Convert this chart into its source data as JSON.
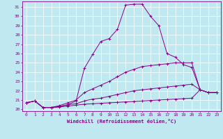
{
  "xlabel": "Windchill (Refroidissement éolien,°C)",
  "background_color": "#c0e8f0",
  "line_color": "#880088",
  "grid_color": "#ffffff",
  "ylim": [
    19.8,
    31.6
  ],
  "xlim": [
    -0.5,
    23.5
  ],
  "yticks": [
    20,
    21,
    22,
    23,
    24,
    25,
    26,
    27,
    28,
    29,
    30,
    31
  ],
  "xticks": [
    0,
    1,
    2,
    3,
    4,
    5,
    6,
    7,
    8,
    9,
    10,
    11,
    12,
    13,
    14,
    15,
    16,
    17,
    18,
    19,
    20,
    21,
    22,
    23
  ],
  "curves": [
    {
      "x": [
        0,
        1,
        2,
        3,
        4,
        5,
        6,
        7,
        8,
        9,
        10,
        11,
        12,
        13,
        14,
        15,
        16,
        17,
        18,
        19,
        20,
        21,
        22,
        23
      ],
      "y": [
        20.7,
        20.9,
        20.2,
        20.2,
        20.3,
        20.5,
        20.9,
        24.4,
        25.9,
        27.3,
        27.6,
        28.6,
        31.2,
        31.3,
        31.3,
        30.0,
        29.0,
        26.0,
        25.6,
        24.8,
        24.5,
        22.1,
        21.8,
        21.8
      ]
    },
    {
      "x": [
        0,
        1,
        2,
        3,
        4,
        5,
        6,
        7,
        8,
        9,
        10,
        11,
        12,
        13,
        14,
        15,
        16,
        17,
        18,
        19,
        20,
        21,
        22,
        23
      ],
      "y": [
        20.7,
        20.9,
        20.2,
        20.2,
        20.4,
        20.7,
        21.0,
        21.8,
        22.2,
        22.6,
        23.0,
        23.5,
        24.0,
        24.3,
        24.6,
        24.7,
        24.8,
        24.9,
        25.0,
        25.0,
        25.0,
        22.1,
        21.8,
        21.8
      ]
    },
    {
      "x": [
        0,
        1,
        2,
        3,
        4,
        5,
        6,
        7,
        8,
        9,
        10,
        11,
        12,
        13,
        14,
        15,
        16,
        17,
        18,
        19,
        20,
        21,
        22,
        23
      ],
      "y": [
        20.7,
        20.9,
        20.2,
        20.2,
        20.3,
        20.5,
        20.6,
        20.9,
        21.1,
        21.2,
        21.4,
        21.6,
        21.8,
        22.0,
        22.1,
        22.2,
        22.3,
        22.4,
        22.5,
        22.6,
        22.7,
        22.1,
        21.8,
        21.8
      ]
    },
    {
      "x": [
        0,
        1,
        2,
        3,
        4,
        5,
        6,
        7,
        8,
        9,
        10,
        11,
        12,
        13,
        14,
        15,
        16,
        17,
        18,
        19,
        20,
        21,
        22,
        23
      ],
      "y": [
        20.7,
        20.9,
        20.2,
        20.2,
        20.25,
        20.35,
        20.45,
        20.55,
        20.6,
        20.65,
        20.7,
        20.75,
        20.8,
        20.85,
        20.9,
        20.95,
        21.0,
        21.05,
        21.1,
        21.15,
        21.2,
        22.1,
        21.8,
        21.8
      ]
    }
  ]
}
